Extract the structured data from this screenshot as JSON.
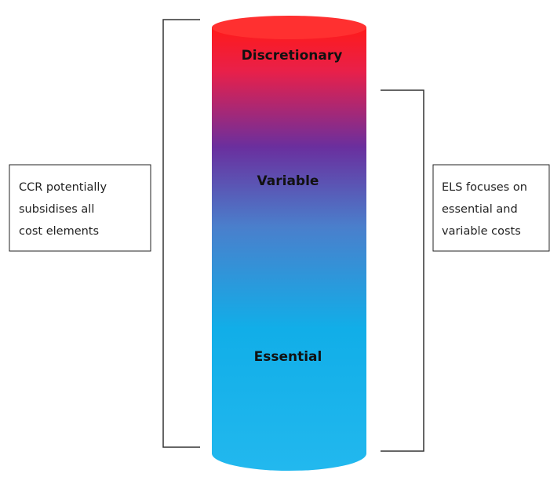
{
  "cylinder": {
    "layers": [
      "Discretionary",
      "Variable",
      "Essential"
    ]
  },
  "left_note": {
    "lines": [
      "CCR potentially",
      "subsidises all",
      "cost elements"
    ]
  },
  "right_note": {
    "lines": [
      "ELS focuses on",
      "essential and",
      "variable costs"
    ]
  }
}
